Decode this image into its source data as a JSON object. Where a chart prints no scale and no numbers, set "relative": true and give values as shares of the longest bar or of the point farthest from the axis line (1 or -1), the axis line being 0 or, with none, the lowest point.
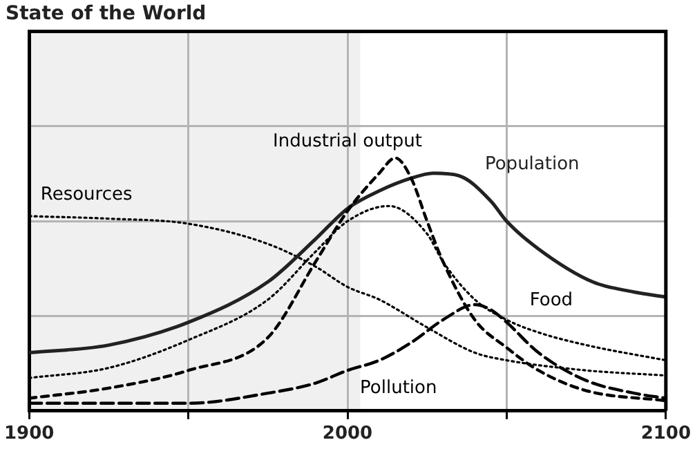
{
  "chart_data": {
    "type": "line",
    "title": "State of the World",
    "relative": true,
    "xlim": [
      1900,
      2100
    ],
    "xticks": [
      1900,
      {
        "value": 1950,
        "label": null
      },
      2000,
      {
        "value": 2050,
        "label": null
      },
      2100
    ],
    "grid": true,
    "legend": false,
    "marker": "none",
    "bands": [
      {
        "axis": "x",
        "from": 1900,
        "to": 2004,
        "color": "#f0f0f0"
      }
    ],
    "series": [
      {
        "name": "Industrial output",
        "color": "#000000",
        "line_style": "dashed",
        "x": [
          1900,
          1925,
          1950,
          1975,
          1990,
          2000,
          2010,
          2015,
          2020,
          2025,
          2030,
          2040,
          2050,
          2060,
          2075,
          2100
        ],
        "values": [
          0.05,
          0.09,
          0.16,
          0.29,
          0.59,
          0.79,
          0.94,
          1.0,
          0.92,
          0.75,
          0.59,
          0.36,
          0.25,
          0.16,
          0.08,
          0.04
        ]
      },
      {
        "name": "Population",
        "color": "#222222",
        "line_style": "solid",
        "x": [
          1900,
          1925,
          1950,
          1975,
          1990,
          2000,
          2010,
          2020,
          2027,
          2035,
          2045,
          2050,
          2060,
          2077,
          2090,
          2100
        ],
        "values": [
          0.23,
          0.26,
          0.35,
          0.51,
          0.68,
          0.8,
          0.87,
          0.92,
          0.94,
          0.93,
          0.83,
          0.75,
          0.64,
          0.51,
          0.47,
          0.45
        ]
      },
      {
        "name": "Resources",
        "color": "#000000",
        "line_style": "dotted",
        "x": [
          1900,
          1925,
          1950,
          1975,
          1990,
          2000,
          2010,
          2025,
          2040,
          2050,
          2075,
          2100
        ],
        "values": [
          0.77,
          0.76,
          0.74,
          0.66,
          0.57,
          0.49,
          0.44,
          0.33,
          0.23,
          0.2,
          0.16,
          0.14
        ]
      },
      {
        "name": "Food",
        "color": "#000000",
        "line_style": "dotted",
        "x": [
          1900,
          1925,
          1950,
          1975,
          1990,
          2000,
          2013,
          2025,
          2030,
          2040,
          2050,
          2060,
          2075,
          2100
        ],
        "values": [
          0.13,
          0.17,
          0.28,
          0.44,
          0.63,
          0.75,
          0.81,
          0.7,
          0.59,
          0.44,
          0.36,
          0.31,
          0.26,
          0.2
        ]
      },
      {
        "name": "Pollution",
        "color": "#000000",
        "line_style": "dashed",
        "x": [
          1900,
          1950,
          1975,
          1990,
          2000,
          2010,
          2020,
          2030,
          2040,
          2045,
          2050,
          2060,
          2075,
          2090,
          2100
        ],
        "values": [
          0.03,
          0.03,
          0.07,
          0.11,
          0.16,
          0.2,
          0.27,
          0.36,
          0.42,
          0.4,
          0.35,
          0.23,
          0.12,
          0.07,
          0.05
        ]
      }
    ]
  }
}
